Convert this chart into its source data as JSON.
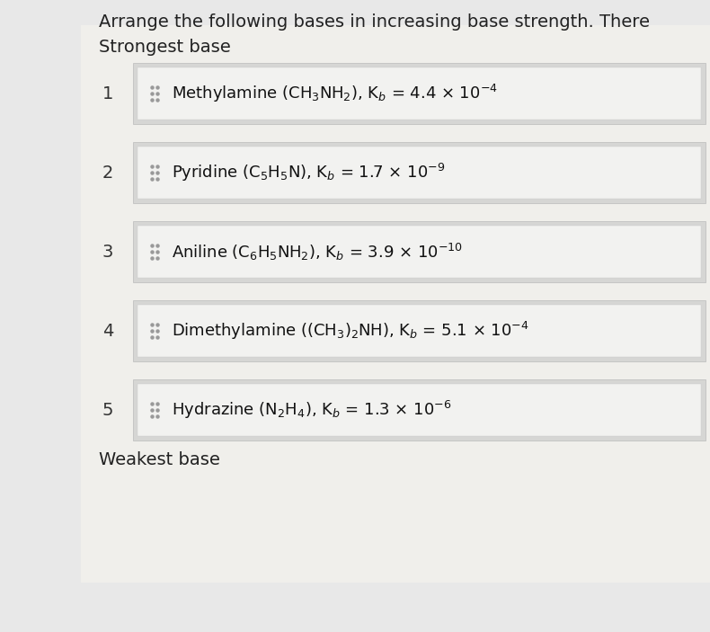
{
  "title": "Arrange the following bases in increasing base strength. There",
  "strongest_label": "Strongest base",
  "weakest_label": "Weakest base",
  "page_bg": "#e8e8e8",
  "content_bg": "#f0efeb",
  "row_outer_bg": "#d8d8d8",
  "row_inner_bg": "#f5f5f3",
  "rows": [
    {
      "num": "1",
      "full_text": "Methylamine (CH$_3$NH$_2$), K$_b$ = 4.4 × 10$^{-4}$"
    },
    {
      "num": "2",
      "full_text": "Pyridine (C$_5$H$_5$N), K$_b$ = 1.7 × 10$^{-9}$"
    },
    {
      "num": "3",
      "full_text": "Aniline (C$_6$H$_5$NH$_2$), K$_b$ = 3.9 × 10$^{-10}$"
    },
    {
      "num": "4",
      "full_text": "Dimethylamine ((CH$_3$)$_2$NH), K$_b$ = 5.1 × 10$^{-4}$"
    },
    {
      "num": "5",
      "full_text": "Hydrazine (N$_2$H$_4$), K$_b$ = 1.3 × 10$^{-6}$"
    }
  ],
  "title_fontsize": 14,
  "label_fontsize": 14,
  "row_fontsize": 13,
  "num_fontsize": 14
}
